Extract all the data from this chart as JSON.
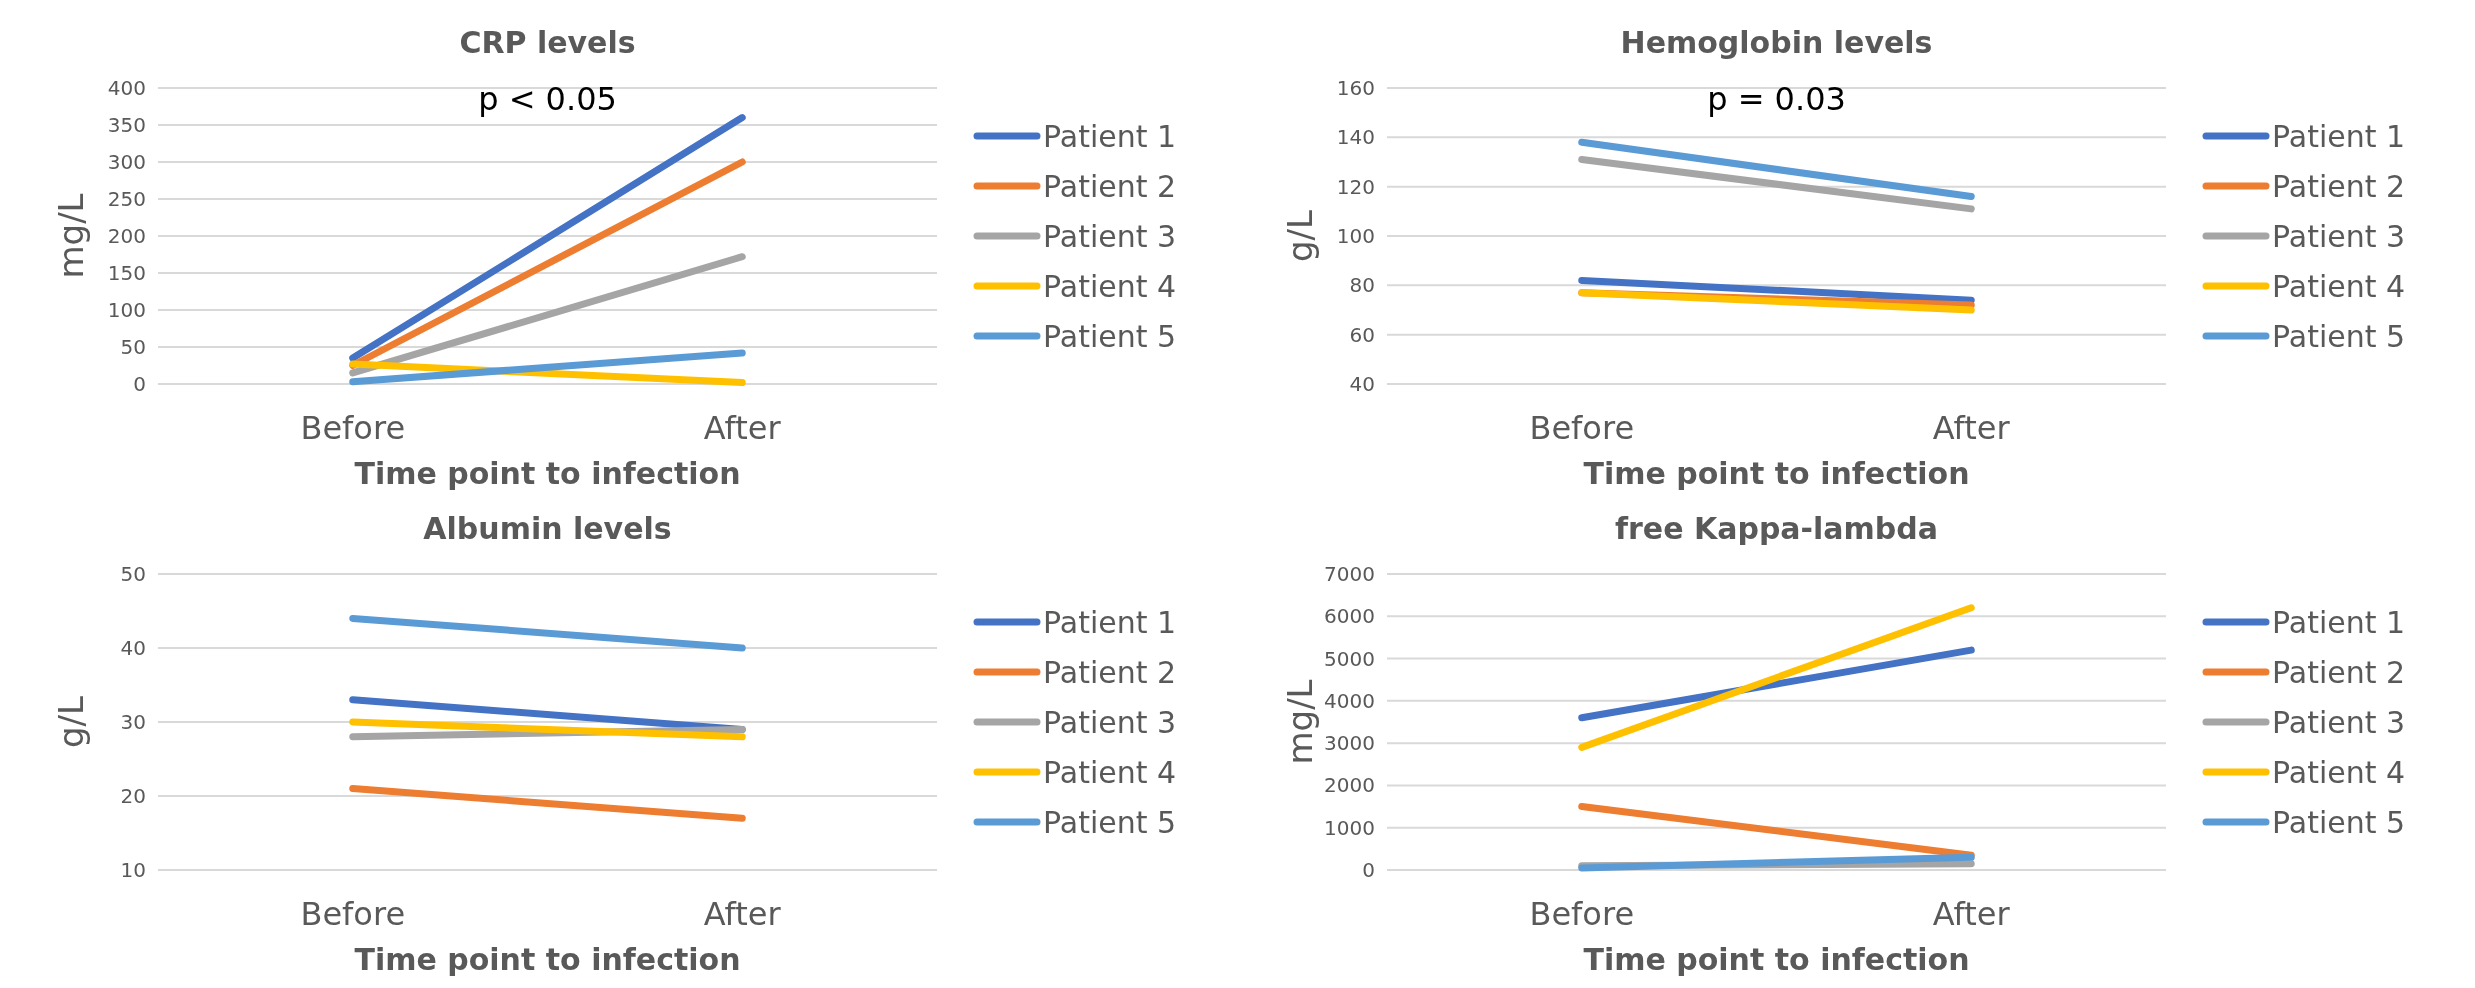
{
  "chart_data": [
    {
      "type": "line",
      "title": "CRP levels",
      "xlabel": "Time point to infection",
      "ylabel": "mg/L",
      "categories": [
        "Before",
        "After"
      ],
      "ylim": [
        0,
        400
      ],
      "yticks": [
        0,
        50,
        100,
        150,
        200,
        250,
        300,
        350,
        400
      ],
      "grid": "y",
      "legend": "right",
      "marker": "none",
      "annotations": [
        "p < 0.05"
      ],
      "series": [
        {
          "name": "Patient 1",
          "color": "#4472c4",
          "values": [
            35,
            360
          ]
        },
        {
          "name": "Patient 2",
          "color": "#ed7d31",
          "values": [
            25,
            300
          ]
        },
        {
          "name": "Patient 3",
          "color": "#a5a5a5",
          "values": [
            15,
            172
          ]
        },
        {
          "name": "Patient 4",
          "color": "#ffc000",
          "values": [
            27,
            2
          ]
        },
        {
          "name": "Patient 5",
          "color": "#5b9bd5",
          "values": [
            3,
            42
          ]
        }
      ]
    },
    {
      "type": "line",
      "title": "Hemoglobin levels",
      "xlabel": "Time point to infection",
      "ylabel": "g/L",
      "categories": [
        "Before",
        "After"
      ],
      "ylim": [
        40,
        160
      ],
      "yticks": [
        40,
        60,
        80,
        100,
        120,
        140,
        160
      ],
      "grid": "y",
      "legend": "right",
      "marker": "none",
      "annotations": [
        "p = 0.03"
      ],
      "series": [
        {
          "name": "Patient 1",
          "color": "#4472c4",
          "values": [
            82,
            74
          ]
        },
        {
          "name": "Patient 2",
          "color": "#ed7d31",
          "values": [
            77,
            72
          ]
        },
        {
          "name": "Patient 3",
          "color": "#a5a5a5",
          "values": [
            131,
            111
          ]
        },
        {
          "name": "Patient 4",
          "color": "#ffc000",
          "values": [
            77,
            70
          ]
        },
        {
          "name": "Patient 5",
          "color": "#5b9bd5",
          "values": [
            138,
            116
          ]
        }
      ]
    },
    {
      "type": "line",
      "title": "Albumin levels",
      "xlabel": "Time point to infection",
      "ylabel": "g/L",
      "categories": [
        "Before",
        "After"
      ],
      "ylim": [
        10,
        50
      ],
      "yticks": [
        10,
        20,
        30,
        40,
        50
      ],
      "grid": "y",
      "legend": "right",
      "marker": "none",
      "series": [
        {
          "name": "Patient 1",
          "color": "#4472c4",
          "values": [
            33,
            29
          ]
        },
        {
          "name": "Patient 2",
          "color": "#ed7d31",
          "values": [
            21,
            17
          ]
        },
        {
          "name": "Patient 3",
          "color": "#a5a5a5",
          "values": [
            28,
            29
          ]
        },
        {
          "name": "Patient 4",
          "color": "#ffc000",
          "values": [
            30,
            28
          ]
        },
        {
          "name": "Patient 5",
          "color": "#5b9bd5",
          "values": [
            44,
            40
          ]
        }
      ]
    },
    {
      "type": "line",
      "title": "free Kappa-lambda",
      "xlabel": "Time point to infection",
      "ylabel": "mg/L",
      "categories": [
        "Before",
        "After"
      ],
      "ylim": [
        0,
        7000
      ],
      "yticks": [
        0,
        1000,
        2000,
        3000,
        4000,
        5000,
        6000,
        7000
      ],
      "grid": "y",
      "legend": "right",
      "marker": "none",
      "series": [
        {
          "name": "Patient 1",
          "color": "#4472c4",
          "values": [
            3600,
            5200
          ]
        },
        {
          "name": "Patient 2",
          "color": "#ed7d31",
          "values": [
            1500,
            350
          ]
        },
        {
          "name": "Patient 3",
          "color": "#a5a5a5",
          "values": [
            100,
            150
          ]
        },
        {
          "name": "Patient 4",
          "color": "#ffc000",
          "values": [
            2900,
            6200
          ]
        },
        {
          "name": "Patient 5",
          "color": "#5b9bd5",
          "values": [
            50,
            300
          ]
        }
      ]
    }
  ]
}
